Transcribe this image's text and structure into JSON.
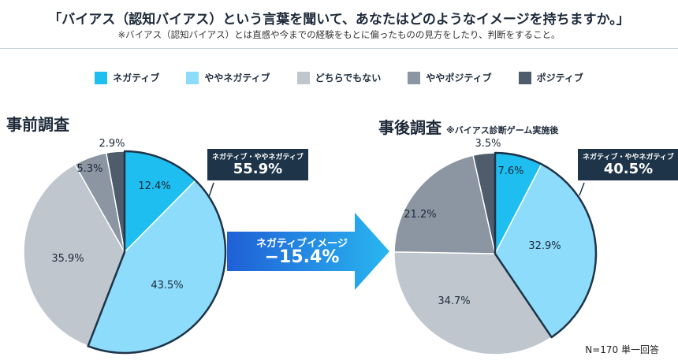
{
  "header": {
    "title": "「バイアス（認知バイアス）という言葉を聞いて、あなたはどのようなイメージを持ちますか。」",
    "subtitle": "※バイアス（認知バイアス）とは直感や今までの経験をもとに偏ったものの見方をしたり、判断をすること。"
  },
  "legend": [
    {
      "label": "ネガティブ",
      "color": "#1ebef0"
    },
    {
      "label": "ややネガティブ",
      "color": "#8ddcfb"
    },
    {
      "label": "どちらでもない",
      "color": "#bfc6ce"
    },
    {
      "label": "ややポジティブ",
      "color": "#8b96a2"
    },
    {
      "label": "ポジティブ",
      "color": "#4e5c6b"
    }
  ],
  "before": {
    "title": "事前調査",
    "callout_label": "ネガティブ・ややネガティブ",
    "callout_value": "55.9%"
  },
  "after": {
    "title": "事後調査",
    "note": "※バイアス診断ゲーム実施後",
    "callout_label": "ネガティブ・ややネガティブ",
    "callout_value": "40.5%"
  },
  "arrow": {
    "label": "ネガティブイメージ",
    "value": "−15.4%"
  },
  "footnote": "N=170 単一回答",
  "chart_data": [
    {
      "type": "pie",
      "title": "事前調査",
      "categories": [
        "ネガティブ",
        "ややネガティブ",
        "どちらでもない",
        "ややポジティブ",
        "ポジティブ"
      ],
      "values": [
        12.4,
        43.5,
        35.9,
        5.3,
        2.9
      ],
      "labels": [
        "12.4%",
        "43.5%",
        "35.9%",
        "5.3%",
        "2.9%"
      ],
      "highlighted": [
        "ネガティブ",
        "ややネガティブ"
      ]
    },
    {
      "type": "pie",
      "title": "事後調査",
      "categories": [
        "ネガティブ",
        "ややネガティブ",
        "どちらでもない",
        "ややポジティブ",
        "ポジティブ"
      ],
      "values": [
        7.6,
        32.9,
        34.7,
        21.2,
        3.5
      ],
      "labels": [
        "7.6%",
        "32.9%",
        "34.7%",
        "21.2%",
        "3.5%"
      ],
      "highlighted": [
        "ネガティブ",
        "ややネガティブ"
      ]
    }
  ]
}
